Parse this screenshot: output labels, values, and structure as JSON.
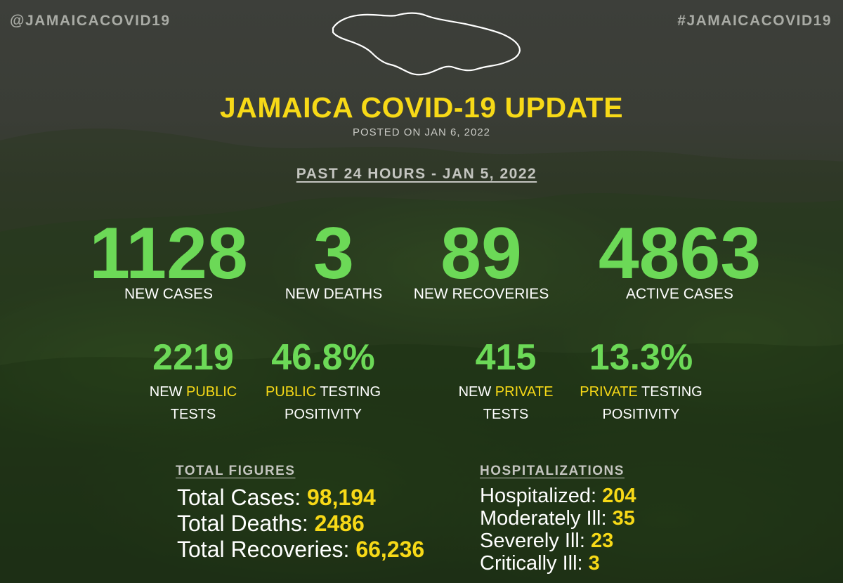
{
  "header": {
    "handle_left": "@JAMAICACOVID19",
    "handle_right": "#JAMAICACOVID19",
    "map_icon": "jamaica-outline-icon",
    "title": "JAMAICA COVID-19 UPDATE",
    "posted": "POSTED ON JAN 6, 2022"
  },
  "period": "PAST 24 HOURS - JAN 5, 2022",
  "headline_stats": [
    {
      "value": "1128",
      "label": "NEW CASES"
    },
    {
      "value": "3",
      "label": "NEW DEATHS"
    },
    {
      "value": "89",
      "label": "NEW RECOVERIES"
    },
    {
      "value": "4863",
      "label": "ACTIVE CASES"
    }
  ],
  "testing": {
    "public_tests": {
      "value": "2219",
      "line1_pre": "NEW ",
      "line1_hl": "PUBLIC",
      "line2": "TESTS"
    },
    "public_positivity": {
      "value": "46.8%",
      "line1_hl": "PUBLIC",
      "line1_post": " TESTING",
      "line2": "POSITIVITY"
    },
    "private_tests": {
      "value": "415",
      "line1_pre": "NEW ",
      "line1_hl": "PRIVATE",
      "line2": "TESTS"
    },
    "private_positivity": {
      "value": "13.3%",
      "line1_hl": "PRIVATE",
      "line1_post": " TESTING",
      "line2": "POSITIVITY"
    }
  },
  "totals": {
    "heading": "TOTAL FIGURES",
    "items": [
      {
        "label": "Total Cases: ",
        "value": "98,194"
      },
      {
        "label": "Total Deaths: ",
        "value": "2486"
      },
      {
        "label": "Total Recoveries: ",
        "value": "66,236"
      }
    ]
  },
  "hospitalizations": {
    "heading": "HOSPITALIZATIONS",
    "items": [
      {
        "label": "Hospitalized: ",
        "value": "204"
      },
      {
        "label": "Moderately Ill: ",
        "value": "35"
      },
      {
        "label": "Severely Ill: ",
        "value": "23"
      },
      {
        "label": "Critically Ill: ",
        "value": "3"
      }
    ]
  },
  "colors": {
    "accent_yellow": "#f7d917",
    "stat_green": "#6cd957",
    "muted_text": "#c4c5c0"
  }
}
